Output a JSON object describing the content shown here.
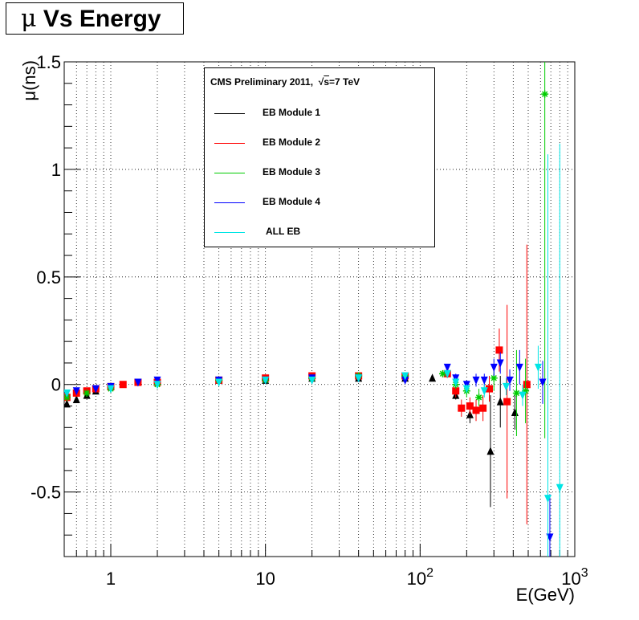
{
  "title": {
    "prefix": "μ",
    "text": "Vs Energy"
  },
  "chart_data": {
    "type": "scatter",
    "xlabel": "E(GeV)",
    "ylabel": "μ(ns)",
    "x_scale": "log",
    "xlim": [
      0.5,
      1000
    ],
    "ylim": [
      -0.8,
      1.5
    ],
    "grid": true,
    "x_ticks": [
      {
        "value": 1,
        "label": "1"
      },
      {
        "value": 10,
        "label": "10"
      },
      {
        "value": 100,
        "label": "10",
        "sup": "2"
      },
      {
        "value": 1000,
        "label": "10",
        "sup": "3"
      }
    ],
    "y_ticks": [
      {
        "value": -0.5,
        "label": "-0.5"
      },
      {
        "value": 0,
        "label": "0"
      },
      {
        "value": 0.5,
        "label": "0.5"
      },
      {
        "value": 1,
        "label": "1"
      },
      {
        "value": 1.5,
        "label": "1.5"
      }
    ],
    "legend": {
      "header": "CMS Preliminary 2011,",
      "header_sqrt": "s",
      "header_energy": "=7 TeV",
      "placement": "top-center",
      "entries": [
        "EB Module 1",
        "EB Module 2",
        "EB Module 3",
        "EB Module 4",
        "ALL EB"
      ]
    },
    "series": [
      {
        "name": "EB Module 1",
        "color": "#000000",
        "marker": "triangle-up",
        "points": [
          [
            0.52,
            -0.09,
            0.01
          ],
          [
            0.6,
            -0.07,
            0.01
          ],
          [
            0.7,
            -0.05,
            0.01
          ],
          [
            0.8,
            -0.03,
            0.01
          ],
          [
            1,
            -0.01,
            0.01
          ],
          [
            2,
            0.01,
            0.01
          ],
          [
            5,
            0.02,
            0.01
          ],
          [
            10,
            0.02,
            0.01
          ],
          [
            20,
            0.03,
            0.01
          ],
          [
            40,
            0.03,
            0.01
          ],
          [
            80,
            0.03,
            0.01
          ],
          [
            120,
            0.03,
            0.01
          ],
          [
            170,
            -0.05,
            0.02
          ],
          [
            210,
            -0.14,
            0.04
          ],
          [
            285,
            -0.31,
            0.26
          ],
          [
            330,
            -0.08,
            0.12
          ],
          [
            410,
            -0.13,
            0.08
          ]
        ]
      },
      {
        "name": "EB Module 2",
        "color": "#ff0000",
        "marker": "square",
        "points": [
          [
            0.52,
            -0.06,
            0.01
          ],
          [
            0.6,
            -0.04,
            0.01
          ],
          [
            0.7,
            -0.03,
            0.01
          ],
          [
            0.8,
            -0.02,
            0.01
          ],
          [
            1,
            -0.01,
            0.01
          ],
          [
            1.2,
            0,
            0.01
          ],
          [
            1.5,
            0.01,
            0.01
          ],
          [
            2,
            0.01,
            0.01
          ],
          [
            5,
            0.02,
            0.01
          ],
          [
            10,
            0.03,
            0.01
          ],
          [
            20,
            0.04,
            0.01
          ],
          [
            40,
            0.04,
            0.01
          ],
          [
            80,
            0.04,
            0.01
          ],
          [
            150,
            0.05,
            0.02
          ],
          [
            170,
            -0.03,
            0.03
          ],
          [
            185,
            -0.11,
            0.04
          ],
          [
            210,
            -0.1,
            0.04
          ],
          [
            230,
            -0.12,
            0.05
          ],
          [
            255,
            -0.11,
            0.06
          ],
          [
            280,
            -0.02,
            0.06
          ],
          [
            325,
            0.16,
            0.1
          ],
          [
            365,
            -0.08,
            0.45
          ],
          [
            490,
            0,
            0.65
          ]
        ]
      },
      {
        "name": "EB Module 3",
        "color": "#00cc00",
        "marker": "star",
        "points": [
          [
            0.52,
            -0.06,
            0.01
          ],
          [
            0.7,
            -0.04,
            0.01
          ],
          [
            1,
            -0.02,
            0.01
          ],
          [
            2,
            0,
            0.01
          ],
          [
            5,
            0.02,
            0.01
          ],
          [
            10,
            0.02,
            0.01
          ],
          [
            20,
            0.03,
            0.01
          ],
          [
            40,
            0.04,
            0.01
          ],
          [
            80,
            0.04,
            0.01
          ],
          [
            140,
            0.05,
            0.01
          ],
          [
            170,
            0,
            0.02
          ],
          [
            200,
            -0.03,
            0.03
          ],
          [
            240,
            -0.06,
            0.04
          ],
          [
            300,
            0.03,
            0.06
          ],
          [
            420,
            -0.04,
            0.2
          ],
          [
            480,
            -0.03,
            0.15
          ],
          [
            640,
            1.35,
            1.6
          ]
        ]
      },
      {
        "name": "EB Module 4",
        "color": "#0000ff",
        "marker": "triangle-down",
        "points": [
          [
            0.52,
            -0.04,
            0.01
          ],
          [
            0.6,
            -0.03,
            0.01
          ],
          [
            0.8,
            -0.02,
            0.01
          ],
          [
            1,
            -0.01,
            0.01
          ],
          [
            1.5,
            0.01,
            0.01
          ],
          [
            2,
            0.02,
            0.01
          ],
          [
            5,
            0.02,
            0.01
          ],
          [
            10,
            0.02,
            0.01
          ],
          [
            20,
            0.03,
            0.01
          ],
          [
            40,
            0.03,
            0.01
          ],
          [
            80,
            0.02,
            0.01
          ],
          [
            150,
            0.08,
            0.01
          ],
          [
            170,
            0.03,
            0.02
          ],
          [
            200,
            0,
            0.02
          ],
          [
            230,
            0.02,
            0.03
          ],
          [
            260,
            0.02,
            0.03
          ],
          [
            300,
            0.08,
            0.04
          ],
          [
            330,
            0.1,
            0.05
          ],
          [
            380,
            0.02,
            0.05
          ],
          [
            440,
            0.08,
            0.08
          ],
          [
            620,
            0.01,
            0.1
          ],
          [
            690,
            -0.71,
            0.2
          ]
        ]
      },
      {
        "name": "ALL EB",
        "color": "#00e5e5",
        "marker": "triangle-down",
        "points": [
          [
            0.52,
            -0.04,
            0.01
          ],
          [
            1,
            -0.02,
            0.01
          ],
          [
            2,
            0,
            0.01
          ],
          [
            5,
            0.01,
            0.01
          ],
          [
            10,
            0.02,
            0.01
          ],
          [
            20,
            0.02,
            0.01
          ],
          [
            40,
            0.03,
            0.01
          ],
          [
            80,
            0.04,
            0.01
          ],
          [
            150,
            0.05,
            0.01
          ],
          [
            170,
            0.01,
            0.02
          ],
          [
            200,
            -0.02,
            0.02
          ],
          [
            260,
            -0.03,
            0.03
          ],
          [
            360,
            -0.01,
            0.04
          ],
          [
            460,
            -0.05,
            0.05
          ],
          [
            580,
            0.08,
            0.1
          ],
          [
            670,
            -0.53,
            1.6
          ],
          [
            800,
            -0.48,
            1.6
          ]
        ]
      }
    ]
  }
}
